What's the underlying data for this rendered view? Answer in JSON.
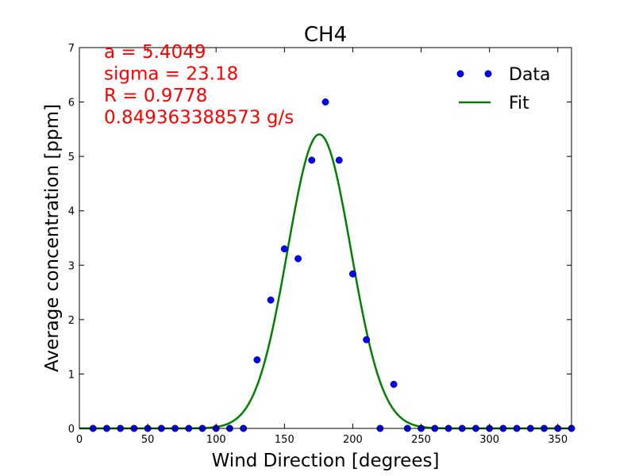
{
  "chart_data": {
    "type": "scatter",
    "title": "CH4",
    "xlabel": "Wind Direction [degrees]",
    "ylabel": "Average concentration [ppm]",
    "xlim": [
      0,
      360
    ],
    "ylim": [
      0,
      7
    ],
    "xticks": [
      "0",
      "50",
      "100",
      "150",
      "200",
      "250",
      "300",
      "350"
    ],
    "yticks": [
      "0",
      "1",
      "2",
      "3",
      "4",
      "5",
      "6",
      "7"
    ],
    "grid": false,
    "legend_position": "top-right",
    "series": [
      {
        "name": "Data",
        "style": "markers",
        "color": "#0000ff",
        "x": [
          10,
          20,
          30,
          40,
          50,
          60,
          70,
          80,
          90,
          100,
          110,
          120,
          130,
          140,
          150,
          160,
          170,
          180,
          190,
          200,
          210,
          220,
          230,
          240,
          250,
          260,
          270,
          280,
          290,
          300,
          310,
          320,
          330,
          340,
          350,
          360
        ],
        "y": [
          0,
          0,
          0,
          0,
          0,
          0,
          0,
          0,
          0,
          0,
          0,
          0,
          1.26,
          2.36,
          3.3,
          3.12,
          4.93,
          6.0,
          4.93,
          2.84,
          1.63,
          0,
          0.81,
          0,
          0,
          0,
          0,
          0,
          0,
          0,
          0,
          0,
          0,
          0,
          0,
          0
        ]
      },
      {
        "name": "Fit",
        "style": "line",
        "color": "#008000",
        "model": "gaussian",
        "amplitude": 5.4049,
        "center": 175.5,
        "sigma": 23.18
      }
    ],
    "annotations": [
      "a = 5.4049",
      "sigma = 23.18",
      "R = 0.9778",
      "0.849363388573 g/s"
    ],
    "annotation_color": "#ff0000"
  }
}
